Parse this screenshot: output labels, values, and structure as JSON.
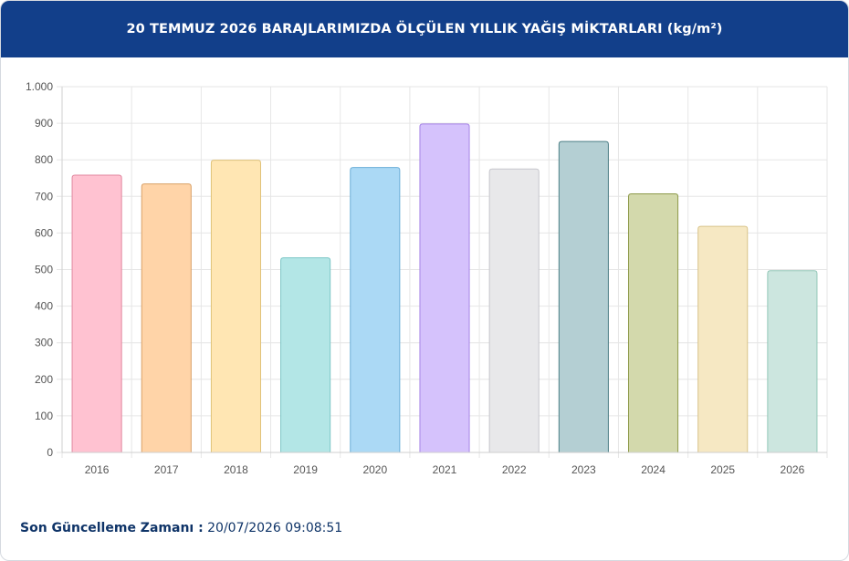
{
  "header": {
    "title": "20 TEMMUZ 2026 BARAJLARIMIZDA ÖLÇÜLEN YILLIK YAĞIŞ MİKTARLARI (kg/m²)"
  },
  "footer": {
    "label": "Son Güncelleme Zamanı :",
    "value": "20/07/2026 09:08:51"
  },
  "chart_data": {
    "type": "bar",
    "title": "20 TEMMUZ 2026 BARAJLARIMIZDA ÖLÇÜLEN YILLIK YAĞIŞ MİKTARLARI (kg/m²)",
    "xlabel": "",
    "ylabel": "",
    "ylim": [
      0,
      1000
    ],
    "yticks": [
      0,
      100,
      200,
      300,
      400,
      500,
      600,
      700,
      800,
      900,
      1000
    ],
    "ytick_labels": [
      "0",
      "100",
      "200",
      "300",
      "400",
      "500",
      "600",
      "700",
      "800",
      "900",
      "1.000"
    ],
    "grid": true,
    "legend": "none",
    "categories": [
      "2016",
      "2017",
      "2018",
      "2019",
      "2020",
      "2021",
      "2022",
      "2023",
      "2024",
      "2025",
      "2026"
    ],
    "values": [
      758,
      734,
      799,
      532,
      779,
      898,
      775,
      850,
      707,
      618,
      497
    ],
    "colors": [
      {
        "fill": "#ffc2d1",
        "stroke": "#e0879f"
      },
      {
        "fill": "#ffd4a8",
        "stroke": "#d9a066"
      },
      {
        "fill": "#ffe6b3",
        "stroke": "#e0c27a"
      },
      {
        "fill": "#b3e6e6",
        "stroke": "#7cc6c6"
      },
      {
        "fill": "#abd9f5",
        "stroke": "#6aaed8"
      },
      {
        "fill": "#d5c2fc",
        "stroke": "#a684e6"
      },
      {
        "fill": "#e8e8ea",
        "stroke": "#c6c6cc"
      },
      {
        "fill": "#b4cfd3",
        "stroke": "#4d7f86"
      },
      {
        "fill": "#d3d9ac",
        "stroke": "#8e9a4a"
      },
      {
        "fill": "#f6e8c3",
        "stroke": "#d9c48a"
      },
      {
        "fill": "#cce6df",
        "stroke": "#93c7b8"
      }
    ]
  }
}
